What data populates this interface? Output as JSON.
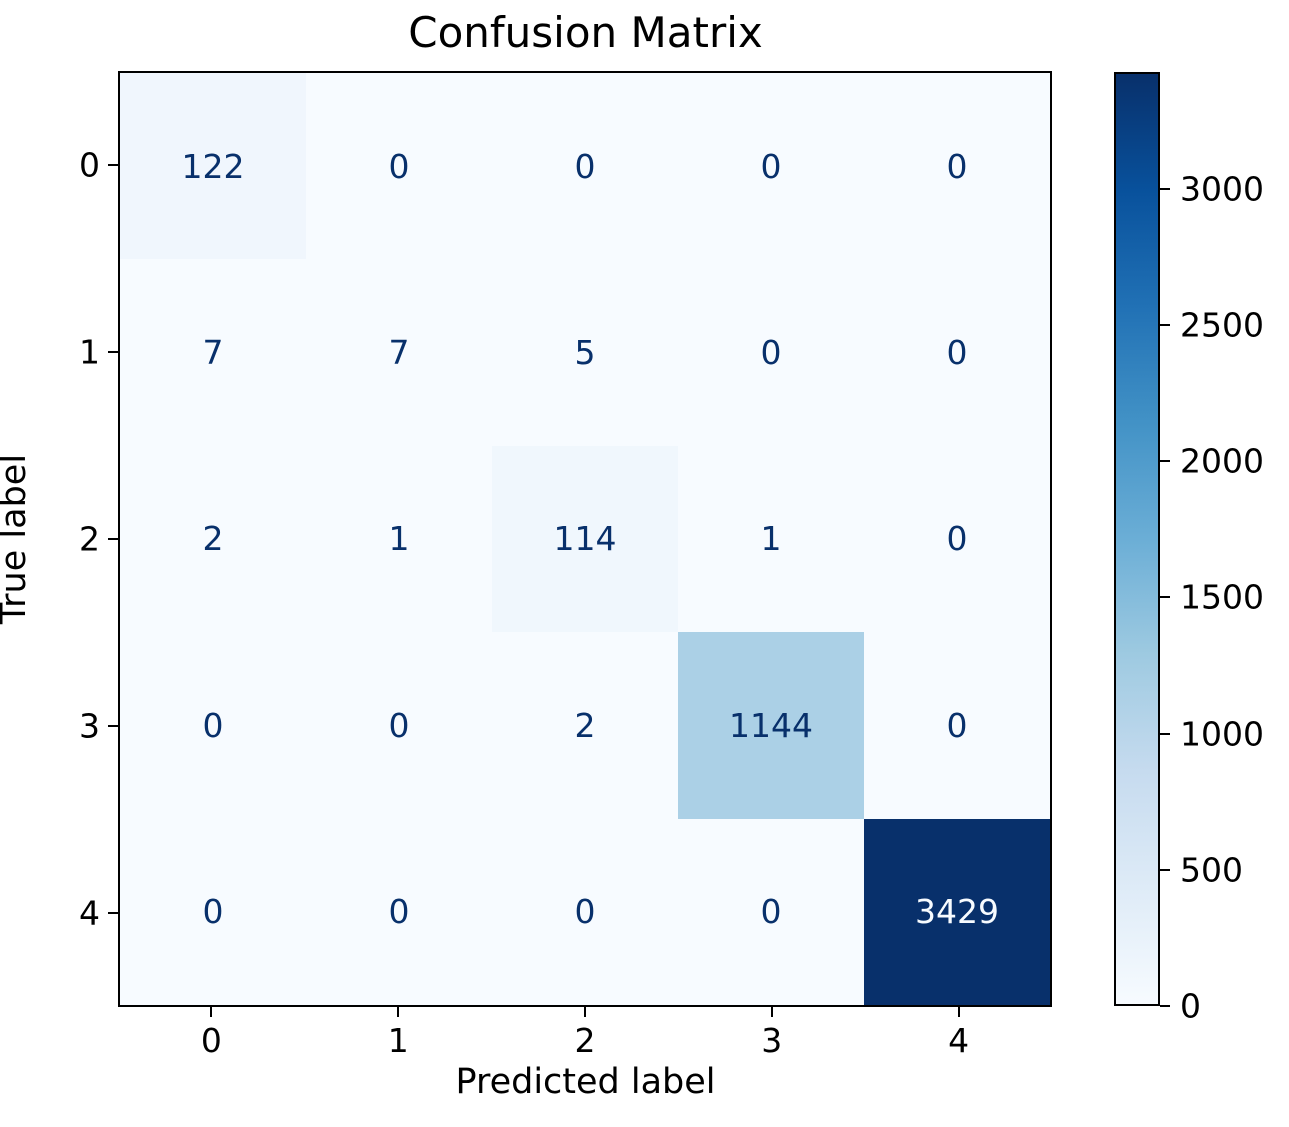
{
  "chart_data": {
    "type": "heatmap",
    "title": "Confusion Matrix",
    "xlabel": "Predicted label",
    "ylabel": "True label",
    "x_tick_labels": [
      "0",
      "1",
      "2",
      "3",
      "4"
    ],
    "y_tick_labels": [
      "0",
      "1",
      "2",
      "3",
      "4"
    ],
    "matrix": [
      [
        122,
        0,
        0,
        0,
        0
      ],
      [
        7,
        7,
        5,
        0,
        0
      ],
      [
        2,
        1,
        114,
        1,
        0
      ],
      [
        0,
        0,
        2,
        1144,
        0
      ],
      [
        0,
        0,
        0,
        0,
        3429
      ]
    ],
    "colormap": "Blues",
    "vmin": 0,
    "vmax": 3429,
    "colorbar_ticks": [
      "0",
      "500",
      "1000",
      "1500",
      "2000",
      "2500",
      "3000"
    ],
    "legend_position": "right-colorbar",
    "grid": false,
    "colors": {
      "cmap_low": "#f7fbff",
      "cmap_high": "#08306b",
      "cell_text_dark": "#08306b",
      "cell_text_light": "#f7fbff",
      "axis_text": "#000000",
      "spine": "#000000"
    }
  }
}
